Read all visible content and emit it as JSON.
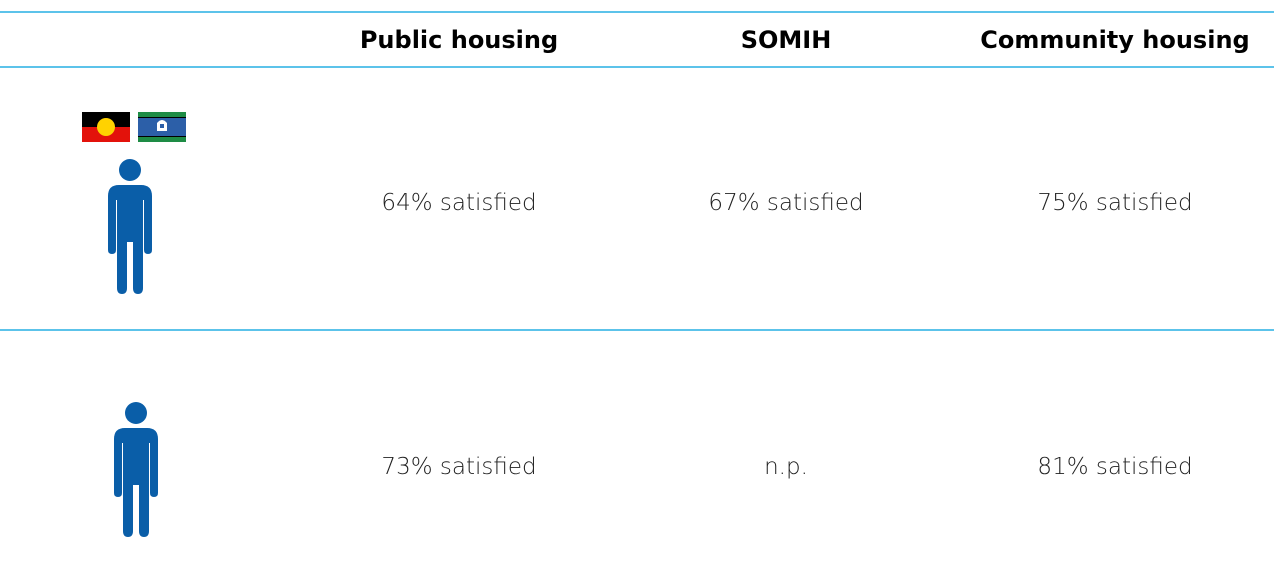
{
  "table": {
    "columns": [
      "Public housing",
      "SOMIH",
      "Community housing"
    ],
    "rows": [
      [
        "64% satisfied",
        "67% satisfied",
        "75% satisfied"
      ],
      [
        "73% satisfied",
        "n.p.",
        "81% satisfied"
      ]
    ]
  }
}
